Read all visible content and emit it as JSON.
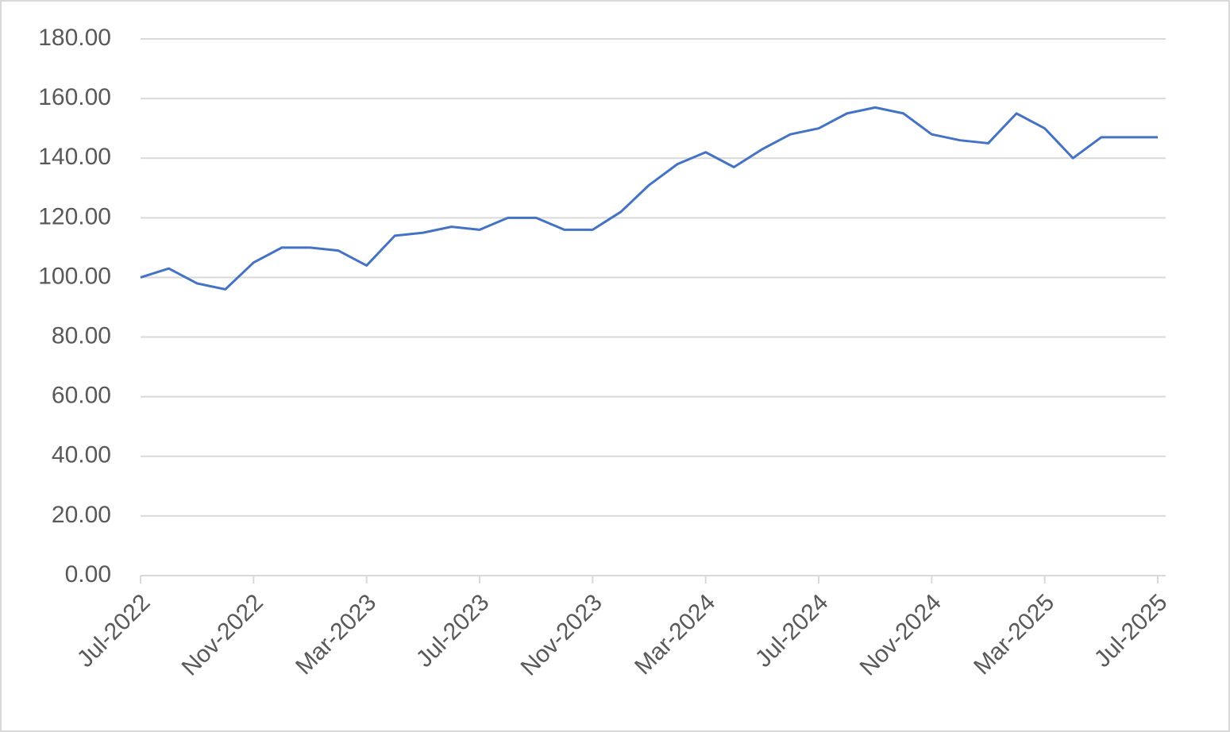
{
  "chart_data": {
    "type": "line",
    "categories": [
      "Jul-2022",
      null,
      null,
      null,
      "Nov-2022",
      null,
      null,
      null,
      "Mar-2023",
      null,
      null,
      null,
      "Jul-2023",
      null,
      null,
      null,
      "Nov-2023",
      null,
      null,
      null,
      "Mar-2024",
      null,
      null,
      null,
      "Jul-2024",
      null,
      null,
      null,
      "Nov-2024",
      null,
      null,
      null,
      "Mar-2025",
      null,
      null,
      null,
      "Jul-2025"
    ],
    "series": [
      {
        "color": "#4472c4",
        "values": [
          100,
          103,
          98,
          96,
          105,
          110,
          110,
          109,
          104,
          114,
          115,
          117,
          116,
          120,
          120,
          116,
          116,
          122,
          131,
          138,
          142,
          137,
          143,
          148,
          150,
          155,
          157,
          155,
          148,
          146,
          145,
          155,
          150,
          140,
          147,
          147,
          147
        ]
      }
    ],
    "ylim": [
      0,
      180
    ],
    "yticks": [
      {
        "value": 0,
        "label": "0.00"
      },
      {
        "value": 20,
        "label": "20.00"
      },
      {
        "value": 40,
        "label": "40.00"
      },
      {
        "value": 60,
        "label": "60.00"
      },
      {
        "value": 80,
        "label": "80.00"
      },
      {
        "value": 100,
        "label": "100.00"
      },
      {
        "value": 120,
        "label": "120.00"
      },
      {
        "value": 140,
        "label": "140.00"
      },
      {
        "value": 160,
        "label": "160.00"
      },
      {
        "value": 180,
        "label": "180.00"
      }
    ],
    "grid": true
  }
}
